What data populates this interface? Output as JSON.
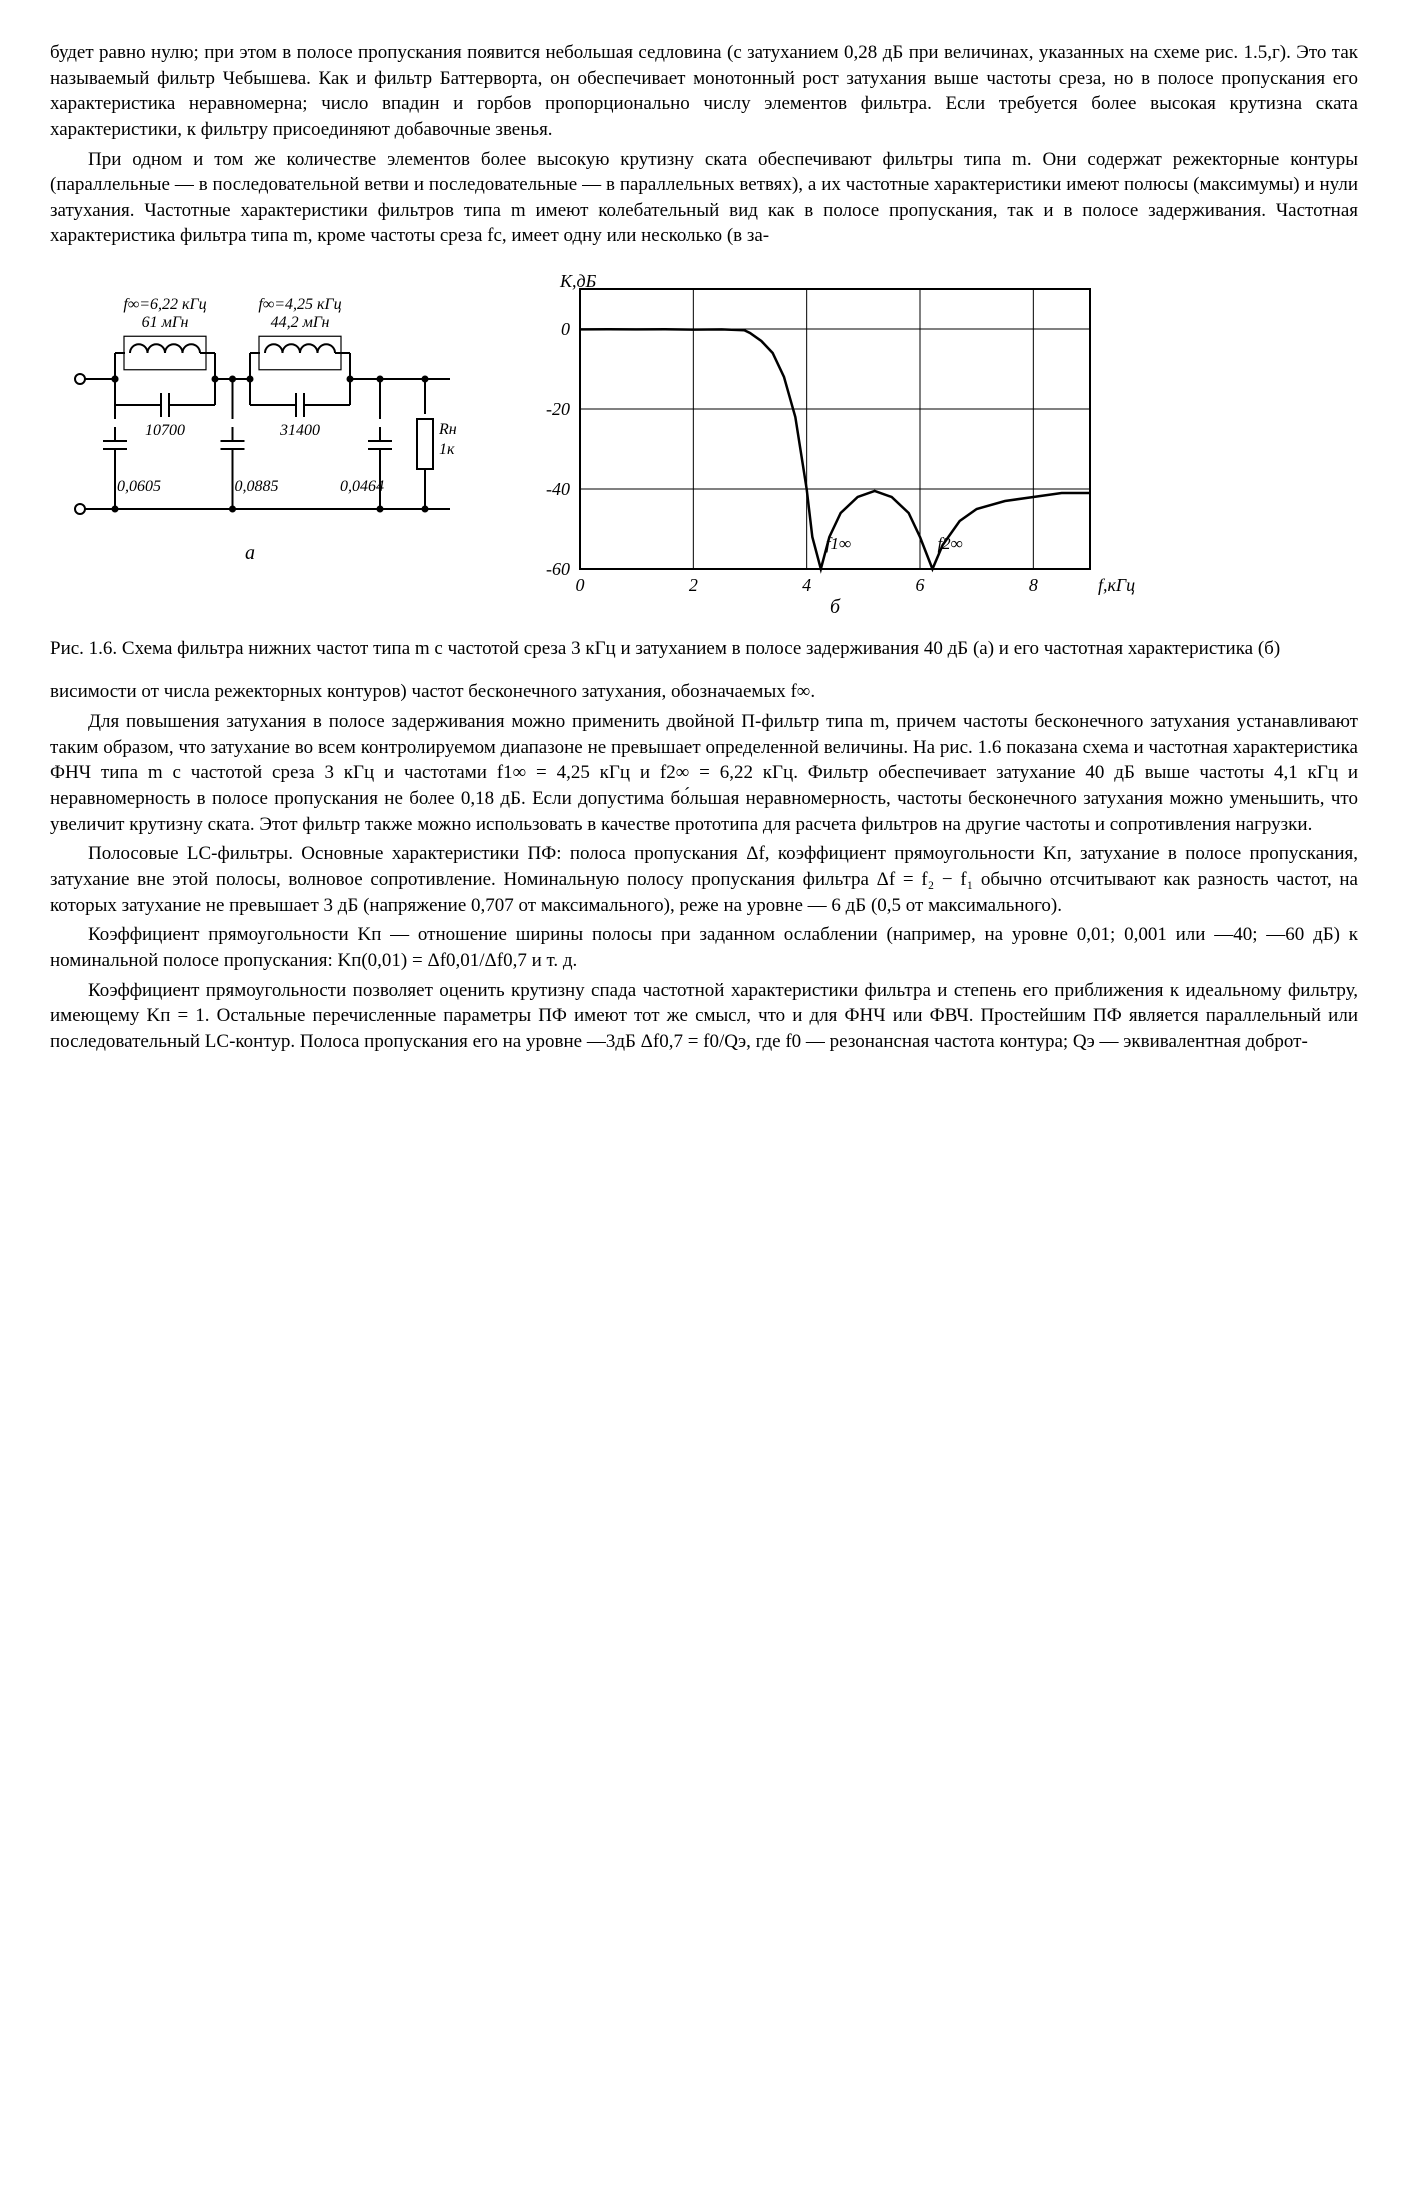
{
  "paragraphs": {
    "p1": "будет равно нулю; при этом в полосе пропускания появится небольшая седловина (с затуханием 0,28 дБ при величинах, указанных на схеме рис. 1.5,г). Это так называемый фильтр Чебышева. Как и фильтр Баттерворта, он обеспечивает монотонный рост затухания выше частоты среза, но в полосе пропускания его характеристика неравномерна; число впадин и горбов пропорционально числу элементов фильтра. Если требуется более высокая крутизна ската характеристики, к фильтру присоединяют добавочные звенья.",
    "p2": "При одном и том же количестве элементов более высокую крутизну ската обеспечивают фильтры типа m. Они содержат режекторные контуры (параллельные — в последовательной ветви и последовательные — в параллельных ветвях), а их частотные характеристики имеют полюсы (максимумы) и нули затухания. Частотные характеристики фильтров типа m имеют колебательный вид как в полосе пропускания, так и в полосе задерживания. Частотная характеристика фильтра типа m, кроме частоты среза fс, имеет одну или несколько (в за-",
    "p3": "висимости от числа режекторных контуров) частот бесконечного затухания, обозначаемых f∞.",
    "p4": "Для повышения затухания в полосе задерживания можно применить двойной П-фильтр типа m, причем частоты бесконечного затухания устанавливают таким образом, что затухание во всем контролируемом диапазоне не превышает определенной величины. На рис. 1.6 показана схема и частотная характеристика ФНЧ типа m с частотой среза 3 кГц и частотами f1∞ = 4,25 кГц и f2∞ = 6,22 кГц. Фильтр обеспечивает затухание 40 дБ выше частоты 4,1 кГц и неравномерность в полосе пропускания не более 0,18 дБ. Если допустима бо́льшая неравномерность, частоты бесконечного затухания можно уменьшить, что увеличит крутизну ската. Этот фильтр также можно использовать в качестве прототипа для расчета фильтров на другие частоты и сопротивления нагрузки.",
    "p5": "Полосовые LC-фильтры. Основные характеристики ПФ: полоса пропускания Δf, коэффициент прямоугольности Kп, затухание в полосе пропускания, затухание вне этой полосы, волновое сопротивление. Номинальную полосу пропускания фильтра Δf = f₂ − f₁ обычно отсчитывают как разность частот, на которых затухание не превышает 3 дБ (напряжение 0,707 от максимального), реже на уровне — 6 дБ (0,5 от максимального).",
    "p6": "Коэффициент прямоугольности Kп — отношение ширины полосы при заданном ослаблении (например, на уровне 0,01; 0,001 или —40; —60 дБ) к номинальной полосе пропускания: Kп(0,01) = Δf0,01/Δf0,7 и т. д.",
    "p7": "Коэффициент прямоугольности позволяет оценить крутизну спада частотной характеристики фильтра и степень его приближения к идеальному фильтру, имеющему Kп = 1. Остальные перечисленные параметры ПФ имеют тот же смысл, что и для ФНЧ или ФВЧ. Простейшим ПФ является параллельный или последовательный LC-контур. Полоса пропускания его на уровне —3дБ Δf0,7 = f0/Qэ, где f0 — резонансная частота контура; Qэ — эквивалентная доброт-"
  },
  "caption": {
    "text": "Рис. 1.6. Схема фильтра нижних частот типа m с частотой среза 3 кГц и затуханием в полосе задерживания 40 дБ (а) и его частотная характеристика (б)"
  },
  "circuit": {
    "label_a": "а",
    "top1": {
      "freq": "f∞=6,22 кГц",
      "ind": "61 мГн",
      "cap": "10700"
    },
    "top2": {
      "freq": "f∞=4,25 кГц",
      "ind": "44,2 мГн",
      "cap": "31400"
    },
    "shunt1": "0,0605",
    "shunt2": "0,0885",
    "shunt3": "0,0464",
    "load_label": "Rн",
    "load_value": "1к",
    "stroke": "#000000",
    "line_width": 2
  },
  "chart": {
    "type": "line",
    "label_b": "б",
    "ylabel": "K,дБ",
    "xlabel": "f,кГц",
    "xlim": [
      0,
      9
    ],
    "ylim": [
      -60,
      10
    ],
    "xticks": [
      0,
      2,
      4,
      6,
      8
    ],
    "yticks": [
      0,
      -20,
      -40,
      -60
    ],
    "grid_color": "#000000",
    "line_color": "#000000",
    "background_color": "#ffffff",
    "line_width": 2.5,
    "grid_width": 1,
    "marker_f1": "f1∞",
    "marker_f2": "f2∞",
    "data": [
      [
        0.0,
        -0.1
      ],
      [
        0.5,
        -0.05
      ],
      [
        1.0,
        -0.1
      ],
      [
        1.5,
        -0.05
      ],
      [
        2.0,
        -0.15
      ],
      [
        2.5,
        -0.1
      ],
      [
        2.9,
        -0.3
      ],
      [
        3.0,
        -1.0
      ],
      [
        3.2,
        -3.0
      ],
      [
        3.4,
        -6.0
      ],
      [
        3.6,
        -12.0
      ],
      [
        3.8,
        -22.0
      ],
      [
        4.0,
        -40.0
      ],
      [
        4.1,
        -52.0
      ],
      [
        4.25,
        -60.0
      ],
      [
        4.4,
        -52.0
      ],
      [
        4.6,
        -46.0
      ],
      [
        4.9,
        -42.0
      ],
      [
        5.2,
        -40.5
      ],
      [
        5.5,
        -42.0
      ],
      [
        5.8,
        -46.0
      ],
      [
        6.0,
        -52.0
      ],
      [
        6.22,
        -60.0
      ],
      [
        6.4,
        -54.0
      ],
      [
        6.7,
        -48.0
      ],
      [
        7.0,
        -45.0
      ],
      [
        7.5,
        -43.0
      ],
      [
        8.0,
        -42.0
      ],
      [
        8.5,
        -41.0
      ],
      [
        9.0,
        -41.0
      ]
    ]
  }
}
